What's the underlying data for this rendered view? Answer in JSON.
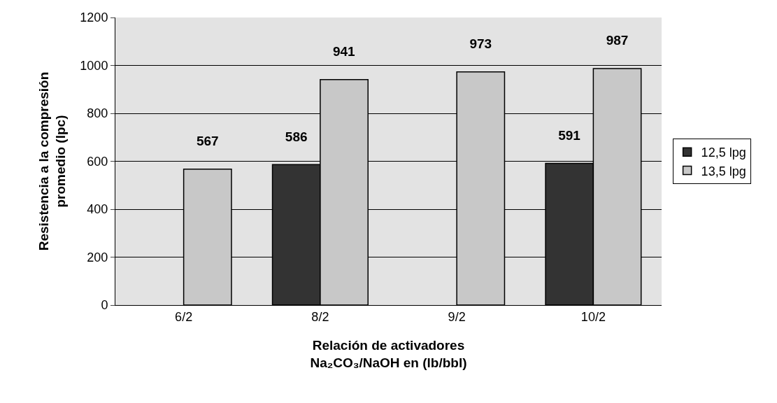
{
  "chart_data": {
    "type": "bar",
    "categories": [
      "6/2",
      "8/2",
      "9/2",
      "10/2"
    ],
    "series": [
      {
        "name": "12,5 lpg",
        "color": "#333333",
        "values": [
          null,
          586,
          null,
          591
        ]
      },
      {
        "name": "13,5 lpg",
        "color": "#c8c8c8",
        "values": [
          567,
          941,
          973,
          987
        ]
      }
    ],
    "xlabel": "Relación de activadores\nNa₂CO₃/NaOH en (lb/bbl)",
    "ylabel": "Resistencia a la compresión\npromedio (lpc)",
    "ylim": [
      0,
      1200
    ],
    "yticks": [
      0,
      200,
      400,
      600,
      800,
      1000,
      1200
    ],
    "grid": "y",
    "legend": "right",
    "data_labels": true
  }
}
